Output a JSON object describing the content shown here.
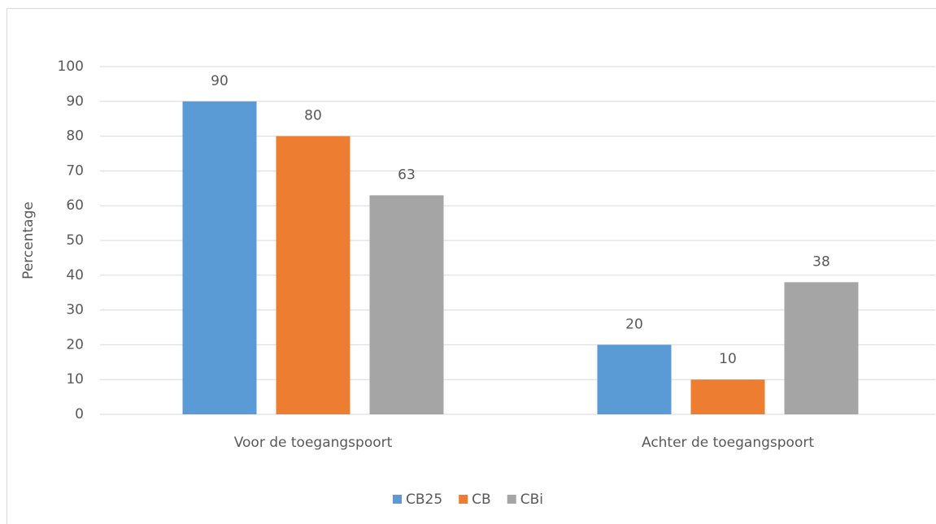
{
  "chart_data": {
    "type": "bar",
    "categories": [
      "Voor de toegangspoort",
      "Achter de toegangspoort"
    ],
    "series": [
      {
        "name": "CB25",
        "color": "#5b9bd5",
        "values": [
          90,
          20
        ]
      },
      {
        "name": "CB",
        "color": "#ed7d31",
        "values": [
          80,
          10
        ]
      },
      {
        "name": "CBi",
        "color": "#a5a5a5",
        "values": [
          63,
          38
        ]
      }
    ],
    "y_label": "Percentage",
    "ylim": [
      0,
      100
    ],
    "yticks": [
      0,
      10,
      20,
      30,
      40,
      50,
      60,
      70,
      80,
      90,
      100
    ],
    "grid": true,
    "legend": "bottom"
  }
}
